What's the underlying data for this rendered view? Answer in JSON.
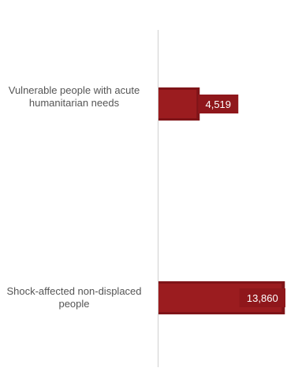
{
  "colors": {
    "bar_inner": "#9b1c1f",
    "bar_outer": "#7f1418",
    "label_box": "#8f171b",
    "axis": "#d0d0d0",
    "category_text": "#555555",
    "value_text": "#ffffff"
  },
  "chart_data": {
    "type": "bar",
    "orientation": "horizontal",
    "categories": [
      "Vulnerable people with acute humanitarian needs",
      "Shock-affected non-displaced people"
    ],
    "values": [
      4519,
      13860
    ],
    "value_labels": [
      "4,519",
      "13,860"
    ],
    "title": "",
    "xlabel": "",
    "ylabel": "",
    "xlim": [
      0,
      14000
    ],
    "grid": false,
    "legend": "none"
  }
}
